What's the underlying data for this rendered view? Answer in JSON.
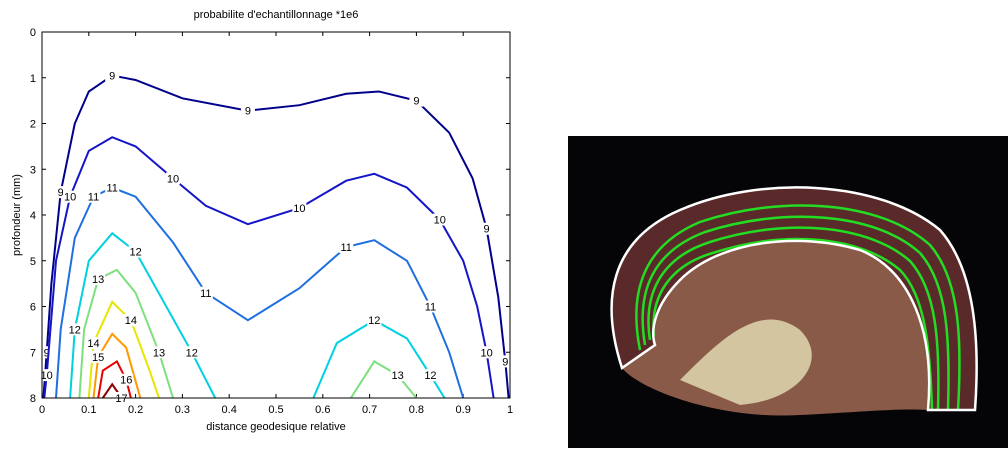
{
  "chart_data": {
    "type": "contour",
    "title": "probabilite d'echantillonnage *1e6",
    "x_label": "distance geodesique relative",
    "y_label": "profondeur (mm)",
    "xlim": [
      0,
      1
    ],
    "ylim": [
      8,
      0
    ],
    "xticks": [
      0,
      0.1,
      0.2,
      0.3,
      0.4,
      0.5,
      0.6,
      0.7,
      0.8,
      0.9,
      1
    ],
    "yticks": [
      0,
      1,
      2,
      3,
      4,
      5,
      6,
      7,
      8
    ],
    "series": [
      {
        "level": 9,
        "color": "#00008b",
        "x": [
          0.003,
          0.01,
          0.02,
          0.04,
          0.07,
          0.1,
          0.15,
          0.2,
          0.3,
          0.44,
          0.55,
          0.65,
          0.72,
          0.8,
          0.87,
          0.92,
          0.95,
          0.975,
          0.99,
          0.997
        ],
        "y": [
          8,
          7,
          5.5,
          3.5,
          2,
          1.3,
          0.95,
          1.05,
          1.45,
          1.72,
          1.6,
          1.35,
          1.3,
          1.5,
          2.2,
          3.2,
          4.3,
          5.8,
          7.2,
          8
        ]
      },
      {
        "level": 10,
        "color": "#1515c8",
        "x": [
          0.005,
          0.01,
          0.03,
          0.06,
          0.1,
          0.15,
          0.2,
          0.28,
          0.35,
          0.44,
          0.55,
          0.65,
          0.71,
          0.78,
          0.85,
          0.9,
          0.93,
          0.95,
          0.965
        ],
        "y": [
          8,
          7.5,
          5,
          3.6,
          2.6,
          2.3,
          2.5,
          3.2,
          3.8,
          4.2,
          3.85,
          3.25,
          3.1,
          3.4,
          4.1,
          5,
          6,
          7,
          8
        ]
      },
      {
        "level": 11,
        "color": "#1f6fe0",
        "x": [
          0.03,
          0.04,
          0.07,
          0.11,
          0.15,
          0.2,
          0.28,
          0.35,
          0.44,
          0.55,
          0.65,
          0.71,
          0.78,
          0.83,
          0.87,
          0.9
        ],
        "y": [
          8,
          6.5,
          4.5,
          3.6,
          3.4,
          3.6,
          4.6,
          5.7,
          6.3,
          5.6,
          4.7,
          4.55,
          5,
          6,
          7,
          8
        ]
      },
      {
        "level": 12,
        "color": "#00d0e0",
        "x": [
          0.06,
          0.07,
          0.1,
          0.15,
          0.2,
          0.26,
          0.32,
          0.37,
          null,
          0.58,
          0.63,
          0.71,
          0.78,
          0.83,
          0.86
        ],
        "y": [
          8,
          6.5,
          5,
          4.4,
          4.8,
          5.9,
          7,
          8,
          null,
          8,
          6.8,
          6.3,
          6.7,
          7.5,
          8
        ]
      },
      {
        "level": 13,
        "color": "#7de07d",
        "x": [
          0.08,
          0.09,
          0.12,
          0.16,
          0.2,
          0.25,
          0.28,
          null,
          0.66,
          0.71,
          0.76,
          0.8
        ],
        "y": [
          8,
          6.5,
          5.4,
          5.2,
          5.7,
          7,
          8,
          null,
          8,
          7.2,
          7.5,
          8
        ]
      },
      {
        "level": 14,
        "color": "#e6e600",
        "x": [
          0.1,
          0.11,
          0.15,
          0.19,
          0.23,
          0.25
        ],
        "y": [
          8,
          6.8,
          5.9,
          6.3,
          7.4,
          8
        ]
      },
      {
        "level": 15,
        "color": "#ff9900",
        "x": [
          0.11,
          0.12,
          0.15,
          0.18,
          0.21
        ],
        "y": [
          8,
          7.1,
          6.6,
          6.9,
          8
        ]
      },
      {
        "level": 16,
        "color": "#e60000",
        "x": [
          0.12,
          0.13,
          0.16,
          0.18,
          0.19
        ],
        "y": [
          8,
          7.4,
          7.2,
          7.6,
          8
        ]
      },
      {
        "level": 17,
        "color": "#8b0000",
        "x": [
          0.13,
          0.15,
          0.17
        ],
        "y": [
          8,
          7.7,
          8
        ]
      }
    ]
  }
}
